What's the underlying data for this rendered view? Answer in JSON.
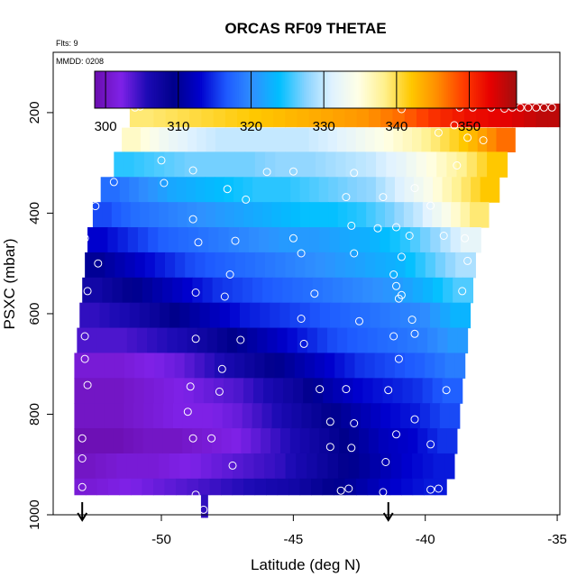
{
  "chart_data": {
    "type": "heatmap",
    "title": "ORCAS RF09 THETAE",
    "annotations": {
      "flights": "Flts: 9",
      "date": "MMDD: 0208"
    },
    "xlabel": "Latitude (deg N)",
    "ylabel": "PSXC (mbar)",
    "xlim": [
      -54.1,
      -34.9
    ],
    "ylim": [
      1000,
      80
    ],
    "x_ticks": [
      -50,
      -45,
      -40,
      -35
    ],
    "y_ticks": [
      200,
      400,
      600,
      800,
      1000
    ],
    "colorbar": {
      "range": [
        298.5,
        356.5
      ],
      "ticks": [
        300,
        310,
        320,
        330,
        340,
        350
      ],
      "colors": [
        "#6a0dad",
        "#7f22e8",
        "#1c0ab4",
        "#00008b",
        "#0000cd",
        "#1e5aff",
        "#2f90ff",
        "#00bfff",
        "#87d3ff",
        "#e0f2ff",
        "#ffffe6",
        "#fff08c",
        "#ffc800",
        "#ff8c00",
        "#ff3c00",
        "#e60000",
        "#a01010"
      ]
    },
    "bands": [
      {
        "p_top": 182,
        "p_bot": 228,
        "lat_min": -51.2,
        "lat_max": -34.9,
        "values": [
          339,
          340,
          341,
          342,
          343,
          344,
          345,
          347,
          350,
          352,
          353,
          355
        ]
      },
      {
        "p_top": 230,
        "p_bot": 278,
        "lat_min": -51.5,
        "lat_max": -36.6,
        "values": [
          336,
          333,
          331,
          330,
          330,
          330,
          330,
          331,
          333,
          335,
          337,
          340,
          343,
          347
        ]
      },
      {
        "p_top": 278,
        "p_bot": 328,
        "lat_min": -51.8,
        "lat_max": -36.9,
        "values": [
          325,
          326,
          327,
          327,
          327,
          328,
          328,
          329,
          330,
          332,
          335,
          338,
          342
        ]
      },
      {
        "p_top": 328,
        "p_bot": 378,
        "lat_min": -52.3,
        "lat_max": -37.2,
        "values": [
          318,
          320,
          322,
          323,
          324,
          325,
          325,
          326,
          327,
          328,
          331,
          334,
          338,
          342
        ]
      },
      {
        "p_top": 378,
        "p_bot": 428,
        "lat_min": -52.6,
        "lat_max": -37.6,
        "values": [
          316,
          318,
          319,
          320,
          321,
          322,
          323,
          324,
          324,
          325,
          327,
          330,
          334,
          339
        ]
      },
      {
        "p_top": 428,
        "p_bot": 478,
        "lat_min": -52.8,
        "lat_max": -37.9,
        "values": [
          313,
          315,
          317,
          318,
          319,
          320,
          321,
          321,
          322,
          323,
          325,
          328,
          332
        ]
      },
      {
        "p_top": 478,
        "p_bot": 528,
        "lat_min": -52.9,
        "lat_max": -38.1,
        "values": [
          310,
          312,
          314,
          316,
          317,
          318,
          319,
          320,
          321,
          322,
          323,
          326,
          329
        ]
      },
      {
        "p_top": 528,
        "p_bot": 578,
        "lat_min": -53.0,
        "lat_max": -38.2,
        "values": [
          307,
          309,
          311,
          313,
          315,
          316,
          317,
          318,
          319,
          320,
          321,
          323,
          326
        ]
      },
      {
        "p_top": 578,
        "p_bot": 628,
        "lat_min": -53.1,
        "lat_max": -38.3,
        "values": [
          305,
          306,
          308,
          310,
          312,
          314,
          315,
          316,
          317,
          318,
          319,
          320,
          323
        ]
      },
      {
        "p_top": 628,
        "p_bot": 678,
        "lat_min": -53.2,
        "lat_max": -38.4,
        "values": [
          304,
          304,
          305,
          306,
          308,
          310,
          312,
          314,
          316,
          317,
          318,
          319,
          321
        ]
      },
      {
        "p_top": 678,
        "p_bot": 728,
        "lat_min": -53.3,
        "lat_max": -38.5,
        "values": [
          301,
          301,
          302,
          303,
          305,
          307,
          309,
          311,
          313,
          315,
          316,
          317,
          319
        ]
      },
      {
        "p_top": 728,
        "p_bot": 778,
        "lat_min": -53.3,
        "lat_max": -38.6,
        "values": [
          300,
          300,
          301,
          302,
          303,
          304,
          306,
          308,
          311,
          313,
          314,
          315,
          317
        ]
      },
      {
        "p_top": 778,
        "p_bot": 828,
        "lat_min": -53.3,
        "lat_max": -38.7,
        "values": [
          300,
          300,
          301,
          302,
          302,
          303,
          305,
          307,
          309,
          311,
          313,
          314,
          316
        ]
      },
      {
        "p_top": 828,
        "p_bot": 878,
        "lat_min": -53.3,
        "lat_max": -38.8,
        "values": [
          299,
          299,
          300,
          300,
          301,
          302,
          304,
          306,
          308,
          310,
          312,
          313,
          315
        ]
      },
      {
        "p_top": 878,
        "p_bot": 928,
        "lat_min": -53.3,
        "lat_max": -38.9,
        "values": [
          300,
          301,
          301,
          302,
          303,
          304,
          305,
          307,
          309,
          311,
          313,
          314
        ]
      },
      {
        "p_top": 928,
        "p_bot": 960,
        "lat_min": -53.3,
        "lat_max": -39.2,
        "values": [
          301,
          302,
          303,
          304,
          305,
          306,
          307,
          309,
          311,
          313,
          314
        ]
      },
      {
        "p_top": 960,
        "p_bot": 1005,
        "lat_min": -48.5,
        "lat_max": -48.25,
        "values": [
          305
        ]
      }
    ],
    "points": [
      [
        -51.0,
        190
      ],
      [
        -50.8,
        188
      ],
      [
        -40.9,
        193
      ],
      [
        -35.2,
        190
      ],
      [
        -35.5,
        190
      ],
      [
        -35.8,
        190
      ],
      [
        -36.1,
        190
      ],
      [
        -36.4,
        190
      ],
      [
        -36.7,
        190
      ],
      [
        -37.0,
        192
      ],
      [
        -37.5,
        190
      ],
      [
        -38.2,
        190
      ],
      [
        -38.7,
        190
      ],
      [
        -38.9,
        225
      ],
      [
        -38.4,
        250
      ],
      [
        -37.8,
        255
      ],
      [
        -39.5,
        240
      ],
      [
        -52.0,
        283
      ],
      [
        -50.0,
        295
      ],
      [
        -48.8,
        315
      ],
      [
        -46.0,
        318
      ],
      [
        -45.0,
        317
      ],
      [
        -42.7,
        320
      ],
      [
        -38.8,
        305
      ],
      [
        -40.4,
        350
      ],
      [
        -51.8,
        338
      ],
      [
        -49.9,
        340
      ],
      [
        -47.5,
        352
      ],
      [
        -46.8,
        373
      ],
      [
        -43.0,
        368
      ],
      [
        -41.6,
        368
      ],
      [
        -39.8,
        385
      ],
      [
        -52.5,
        386
      ],
      [
        -48.8,
        412
      ],
      [
        -45.0,
        450
      ],
      [
        -42.8,
        425
      ],
      [
        -41.8,
        430
      ],
      [
        -41.1,
        428
      ],
      [
        -40.6,
        445
      ],
      [
        -39.3,
        445
      ],
      [
        -52.9,
        450
      ],
      [
        -48.6,
        458
      ],
      [
        -47.2,
        455
      ],
      [
        -44.7,
        480
      ],
      [
        -42.7,
        480
      ],
      [
        -40.9,
        487
      ],
      [
        -38.5,
        450
      ],
      [
        -38.4,
        495
      ],
      [
        -52.4,
        500
      ],
      [
        -47.4,
        522
      ],
      [
        -41.2,
        522
      ],
      [
        -41.1,
        545
      ],
      [
        -40.9,
        563
      ],
      [
        -52.8,
        555
      ],
      [
        -48.7,
        558
      ],
      [
        -47.6,
        566
      ],
      [
        -44.2,
        560
      ],
      [
        -41.0,
        570
      ],
      [
        -38.6,
        555
      ],
      [
        -52.9,
        645
      ],
      [
        -48.7,
        650
      ],
      [
        -47.0,
        652
      ],
      [
        -44.7,
        610
      ],
      [
        -44.6,
        660
      ],
      [
        -42.5,
        615
      ],
      [
        -41.2,
        645
      ],
      [
        -40.5,
        612
      ],
      [
        -40.4,
        640
      ],
      [
        -52.9,
        690
      ],
      [
        -47.7,
        710
      ],
      [
        -41.0,
        690
      ],
      [
        -52.8,
        742
      ],
      [
        -48.9,
        745
      ],
      [
        -47.8,
        755
      ],
      [
        -44.0,
        750
      ],
      [
        -43.0,
        750
      ],
      [
        -41.4,
        752
      ],
      [
        -39.2,
        752
      ],
      [
        -49.0,
        795
      ],
      [
        -43.6,
        815
      ],
      [
        -42.7,
        818
      ],
      [
        -40.4,
        810
      ],
      [
        -53.0,
        848
      ],
      [
        -48.8,
        848
      ],
      [
        -48.1,
        848
      ],
      [
        -43.6,
        865
      ],
      [
        -42.8,
        867
      ],
      [
        -41.1,
        840
      ],
      [
        -39.8,
        860
      ],
      [
        -53.0,
        888
      ],
      [
        -47.3,
        902
      ],
      [
        -41.5,
        895
      ],
      [
        -53.0,
        945
      ],
      [
        -48.7,
        960
      ],
      [
        -48.4,
        990
      ],
      [
        -43.2,
        952
      ],
      [
        -42.9,
        948
      ],
      [
        -41.6,
        955
      ],
      [
        -39.8,
        950
      ],
      [
        -39.5,
        948
      ]
    ],
    "markers_x": [
      -53.0,
      -41.4
    ]
  }
}
